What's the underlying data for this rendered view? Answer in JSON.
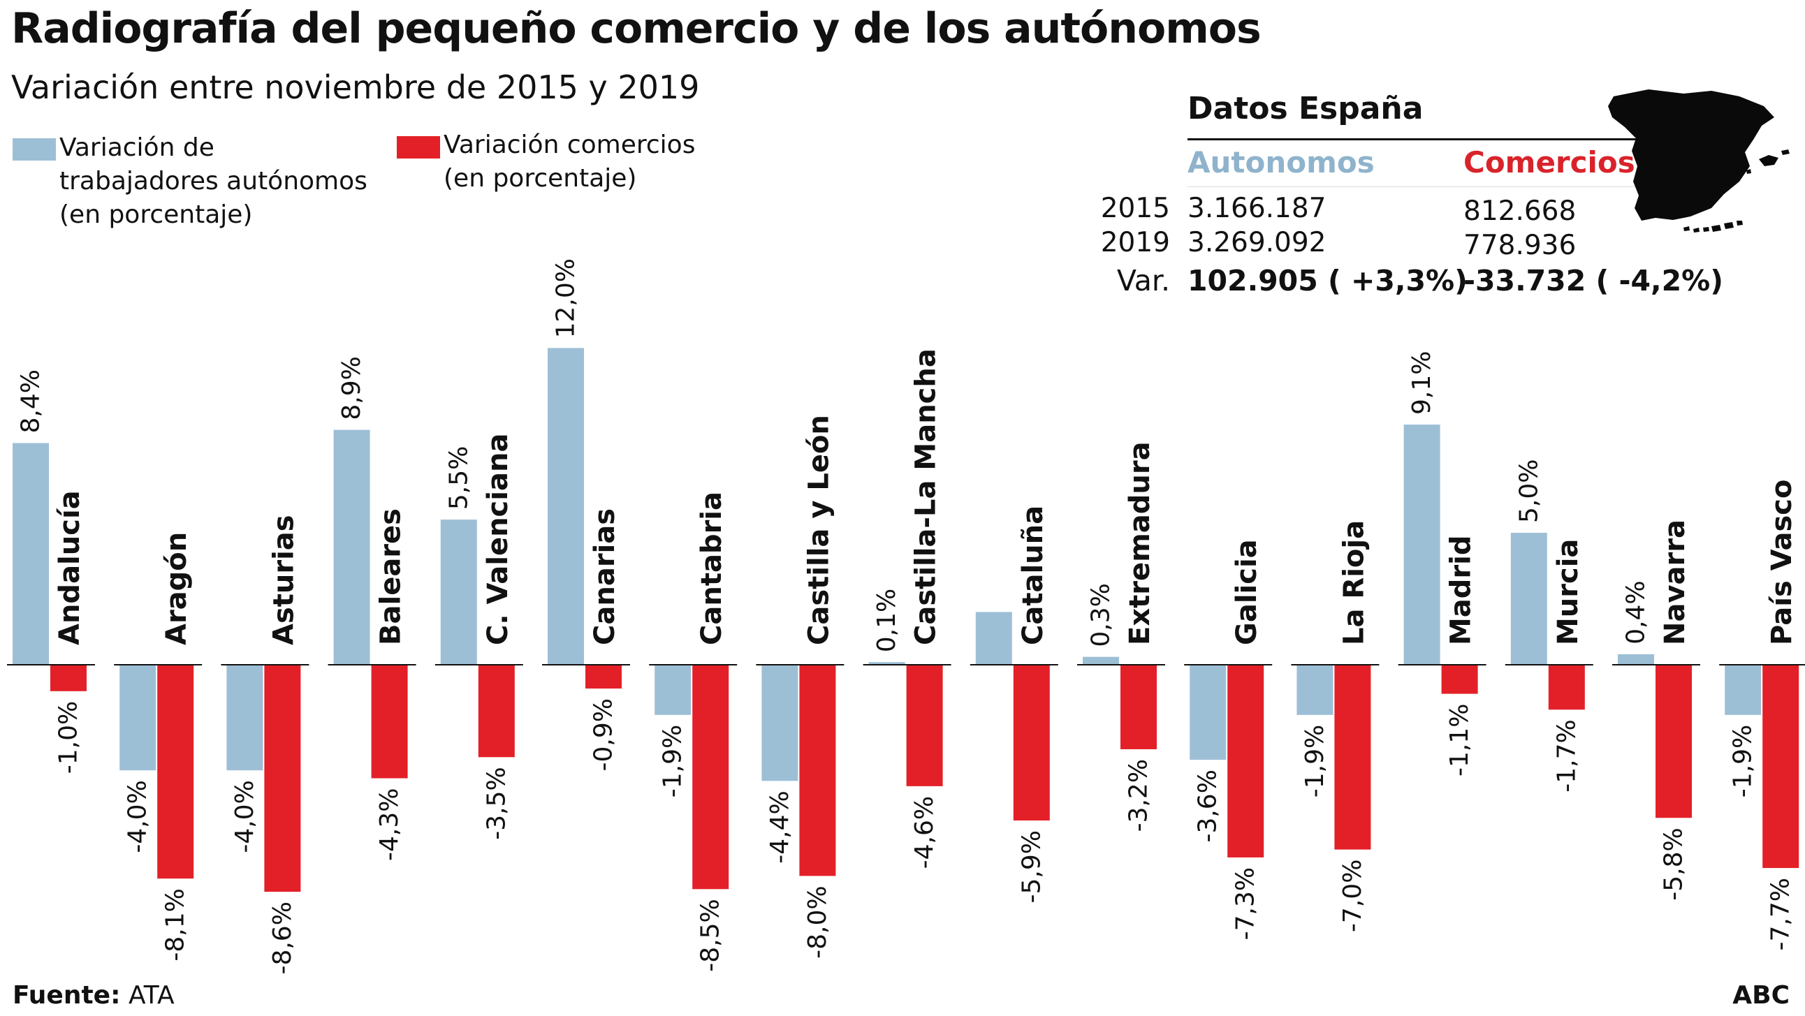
{
  "title": "Radiografía del pequeño comercio y de los autónomos",
  "subtitle": "Variación entre noviembre de 2015 y 2019",
  "legend": {
    "autonomos": [
      "Variación de",
      "trabajadores autónomos",
      "(en porcentaje)"
    ],
    "comercios": [
      "Variación comercios",
      "(en porcentaje)"
    ]
  },
  "datos_espana": {
    "heading": "Datos España",
    "col_autonomos": "Autonomos",
    "col_comercios": "Comercios",
    "rows": [
      {
        "label": "2015",
        "autonomos": "3.166.187",
        "comercios": "812.668"
      },
      {
        "label": "2019",
        "autonomos": "3.269.092",
        "comercios": "778.936"
      },
      {
        "label": "Var.",
        "autonomos": "102.905 ( +3,3%)",
        "comercios": "-33.732 ( -4,2%)"
      }
    ]
  },
  "map_icon": "spain-map-icon",
  "colors": {
    "autonomos": "#9dbfd6",
    "comercios": "#e32028"
  },
  "chart_data": {
    "type": "bar",
    "categories": [
      "Andalucía",
      "Aragón",
      "Asturias",
      "Baleares",
      "C. Valenciana",
      "Canarias",
      "Cantabria",
      "Castilla y León",
      "Castilla-La Mancha",
      "Cataluña",
      "Extremadura",
      "Galicia",
      "La Rioja",
      "Madrid",
      "Murcia",
      "Navarra",
      "País Vasco"
    ],
    "series": [
      {
        "name": "Variación de trabajadores autónomos (en porcentaje)",
        "values": [
          8.4,
          -4.0,
          -4.0,
          8.9,
          5.5,
          12.0,
          -1.9,
          -4.4,
          0.1,
          2.0,
          0.3,
          -3.6,
          -1.9,
          9.1,
          5.0,
          0.4,
          -1.9
        ],
        "labels": [
          "8,4%",
          "-4,0%",
          "-4,0%",
          "8,9%",
          "5,5%",
          "12,0%",
          "-1,9%",
          "-4,4%",
          "0,1%",
          "",
          "0,3%",
          "-3,6%",
          "-1,9%",
          "9,1%",
          "5,0%",
          "0,4%",
          "-1,9%"
        ]
      },
      {
        "name": "Variación comercios (en porcentaje)",
        "values": [
          -1.0,
          -8.1,
          -8.6,
          -4.3,
          -3.5,
          -0.9,
          -8.5,
          -8.0,
          -4.6,
          -5.9,
          -3.2,
          -7.3,
          -7.0,
          -1.1,
          -1.7,
          -5.8,
          -7.7
        ],
        "labels": [
          "-1,0%",
          "-8,1%",
          "-8,6%",
          "-4,3%",
          "-3,5%",
          "-0,9%",
          "-8,5%",
          "-8,0%",
          "-4,6%",
          "-5,9%",
          "-3,2%",
          "-7,3%",
          "-7,0%",
          "-1,1%",
          "-1,7%",
          "-5,8%",
          "-7,7%"
        ]
      }
    ],
    "ylabel": "",
    "xlabel": "",
    "grid": false,
    "legend_position": "top-left"
  },
  "source": {
    "label": "Fuente:",
    "value": "ATA"
  },
  "credit": "ABC"
}
